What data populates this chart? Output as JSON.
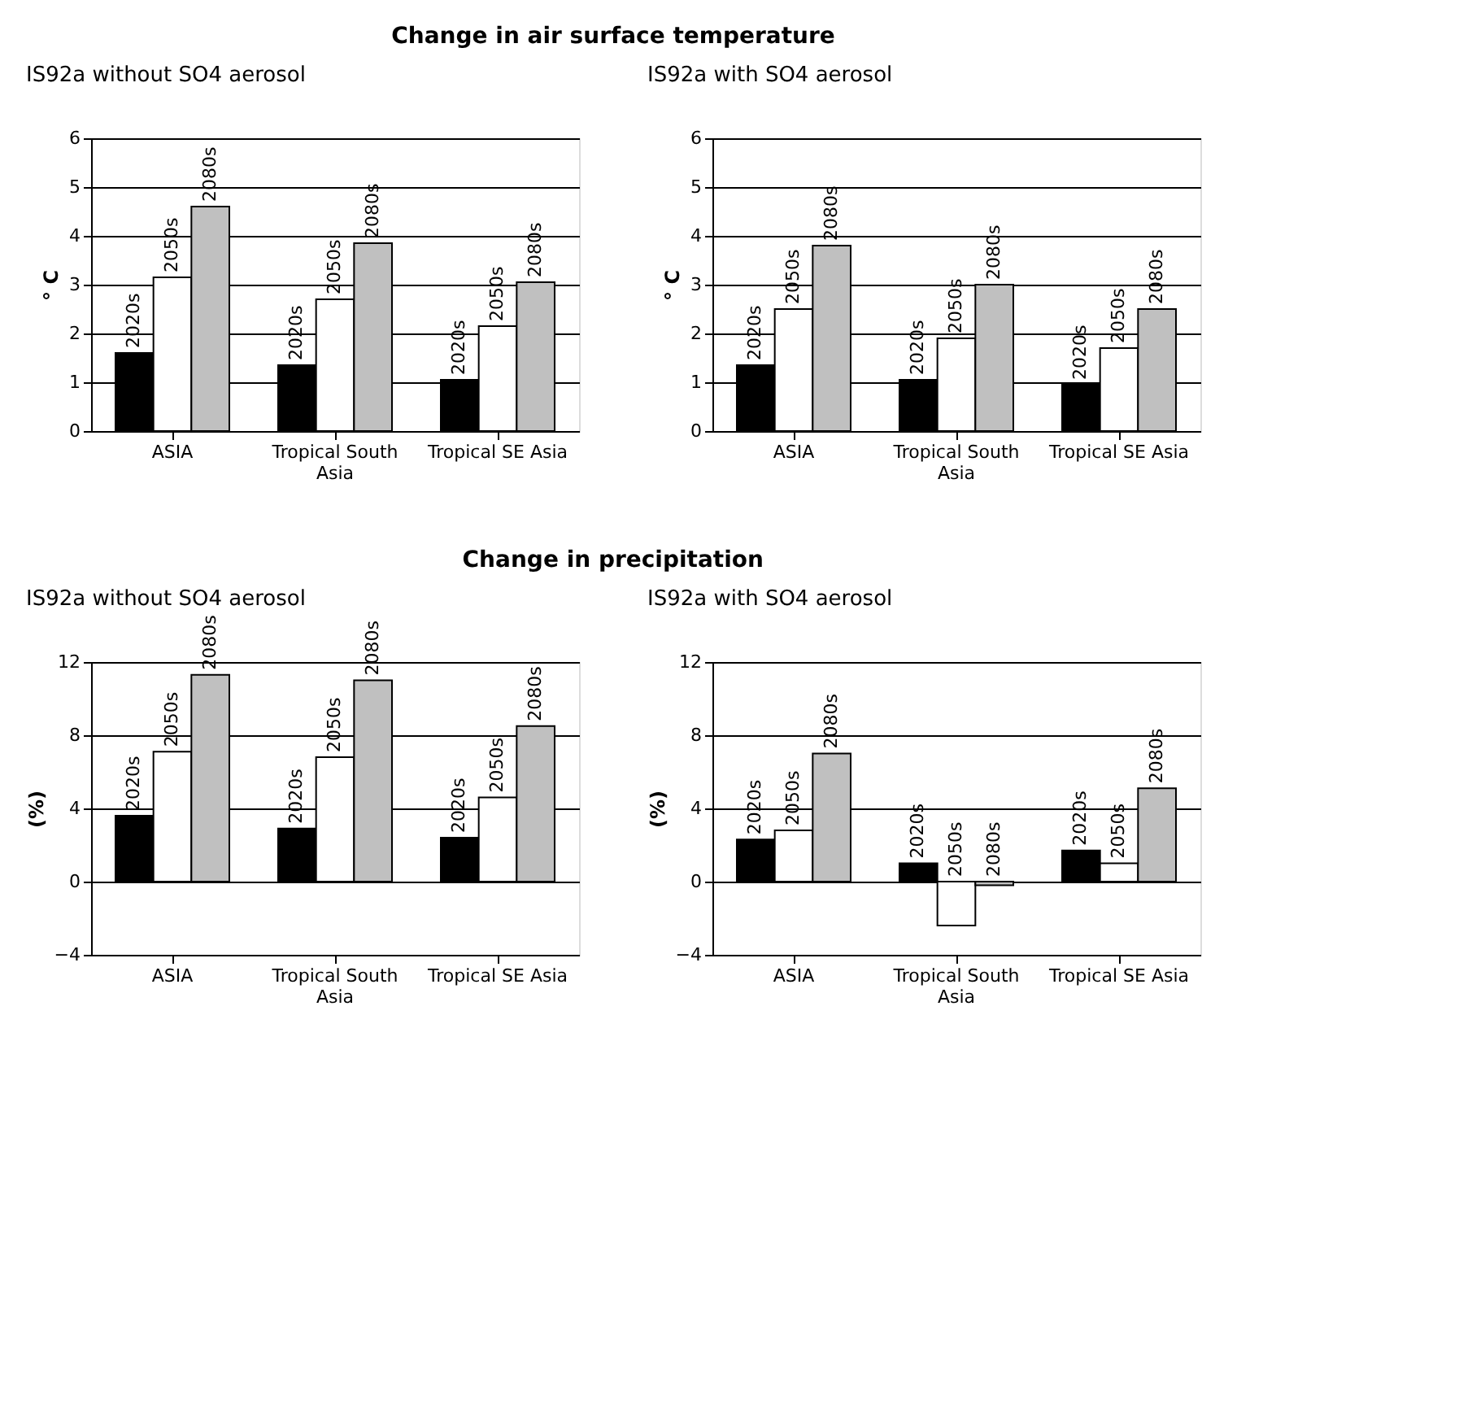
{
  "chart_data": [
    {
      "type": "bar",
      "title": "Change in air surface temperature",
      "subtitle": "IS92a without SO4 aerosol",
      "ylabel": "° C",
      "categories": [
        "ASIA",
        "Tropical South Asia",
        "Tropical SE Asia"
      ],
      "ylim": [
        0,
        6
      ],
      "yticks": [
        0,
        1,
        2,
        3,
        4,
        5,
        6
      ],
      "grid": "y",
      "legend": false,
      "series": [
        {
          "name": "2020s",
          "color": "#000000",
          "values": [
            1.6,
            1.35,
            1.05
          ]
        },
        {
          "name": "2050s",
          "color": "#ffffff",
          "values": [
            3.15,
            2.7,
            2.15
          ]
        },
        {
          "name": "2080s",
          "color": "#c0c0c0",
          "values": [
            4.6,
            3.85,
            3.05
          ]
        }
      ]
    },
    {
      "type": "bar",
      "subtitle": "IS92a with SO4 aerosol",
      "ylabel": "° C",
      "categories": [
        "ASIA",
        "Tropical South Asia",
        "Tropical SE Asia"
      ],
      "ylim": [
        0,
        6
      ],
      "yticks": [
        0,
        1,
        2,
        3,
        4,
        5,
        6
      ],
      "grid": "y",
      "legend": false,
      "series": [
        {
          "name": "2020s",
          "color": "#000000",
          "values": [
            1.35,
            1.05,
            0.95
          ]
        },
        {
          "name": "2050s",
          "color": "#ffffff",
          "values": [
            2.5,
            1.9,
            1.7
          ]
        },
        {
          "name": "2080s",
          "color": "#c0c0c0",
          "values": [
            3.8,
            3.0,
            2.5
          ]
        }
      ]
    },
    {
      "type": "bar",
      "title": "Change in precipitation",
      "subtitle": "IS92a without SO4 aerosol",
      "ylabel": "(%)",
      "categories": [
        "ASIA",
        "Tropical South Asia",
        "Tropical SE Asia"
      ],
      "ylim": [
        -4,
        12
      ],
      "yticks": [
        -4,
        0,
        4,
        8,
        12
      ],
      "grid": "y",
      "legend": false,
      "series": [
        {
          "name": "2020s",
          "color": "#000000",
          "values": [
            3.6,
            2.9,
            2.4
          ]
        },
        {
          "name": "2050s",
          "color": "#ffffff",
          "values": [
            7.1,
            6.8,
            4.6
          ]
        },
        {
          "name": "2080s",
          "color": "#c0c0c0",
          "values": [
            11.3,
            11.0,
            8.5
          ]
        }
      ]
    },
    {
      "type": "bar",
      "subtitle": "IS92a with SO4 aerosol",
      "ylabel": "(%)",
      "categories": [
        "ASIA",
        "Tropical South Asia",
        "Tropical SE Asia"
      ],
      "ylim": [
        -4,
        12
      ],
      "yticks": [
        -4,
        0,
        4,
        8,
        12
      ],
      "grid": "y",
      "legend": false,
      "series": [
        {
          "name": "2020s",
          "color": "#000000",
          "values": [
            2.3,
            1.0,
            1.7
          ]
        },
        {
          "name": "2050s",
          "color": "#ffffff",
          "values": [
            2.8,
            -2.4,
            1.0
          ]
        },
        {
          "name": "2080s",
          "color": "#c0c0c0",
          "values": [
            7.0,
            -0.2,
            5.1
          ]
        }
      ]
    }
  ]
}
